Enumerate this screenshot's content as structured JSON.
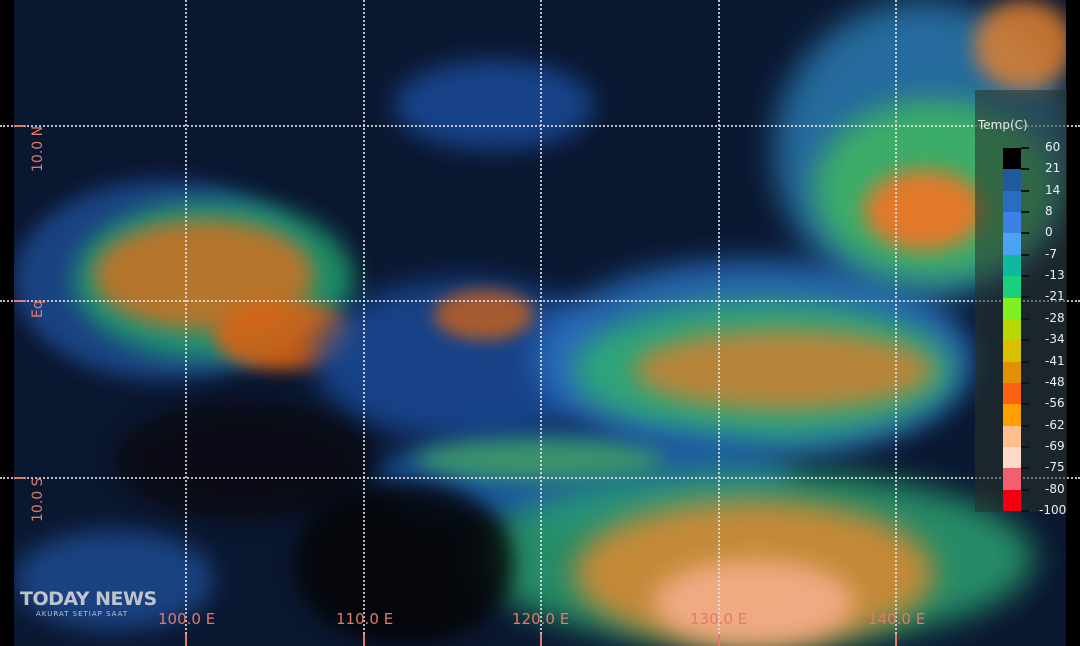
{
  "map": {
    "longitude_labels": [
      "100.0 E",
      "110.0 E",
      "120.0 E",
      "130.0 E",
      "140.0 E"
    ],
    "latitude_labels": [
      "10.0 N",
      "Eq",
      "10.0 S"
    ]
  },
  "legend": {
    "title": "Temp(C)",
    "labels": [
      "60",
      "21",
      "14",
      "8",
      "0",
      "-7",
      "-13",
      "-21",
      "-28",
      "-34",
      "-41",
      "-48",
      "-56",
      "-62",
      "-69",
      "-75",
      "-80",
      "-100"
    ],
    "colors": [
      "#000000",
      "#1e5a9c",
      "#2a6cc0",
      "#3c82e6",
      "#4aa4f0",
      "#10b8a0",
      "#18d080",
      "#80f020",
      "#b8d800",
      "#d8c000",
      "#e09000",
      "#ff6010",
      "#ffa000",
      "#ffc090",
      "#ffd8c8",
      "#f06070",
      "#f00010"
    ]
  },
  "watermark": {
    "title": "TODAY NEWS",
    "tagline": "AKURAT SETIAP SAAT"
  }
}
